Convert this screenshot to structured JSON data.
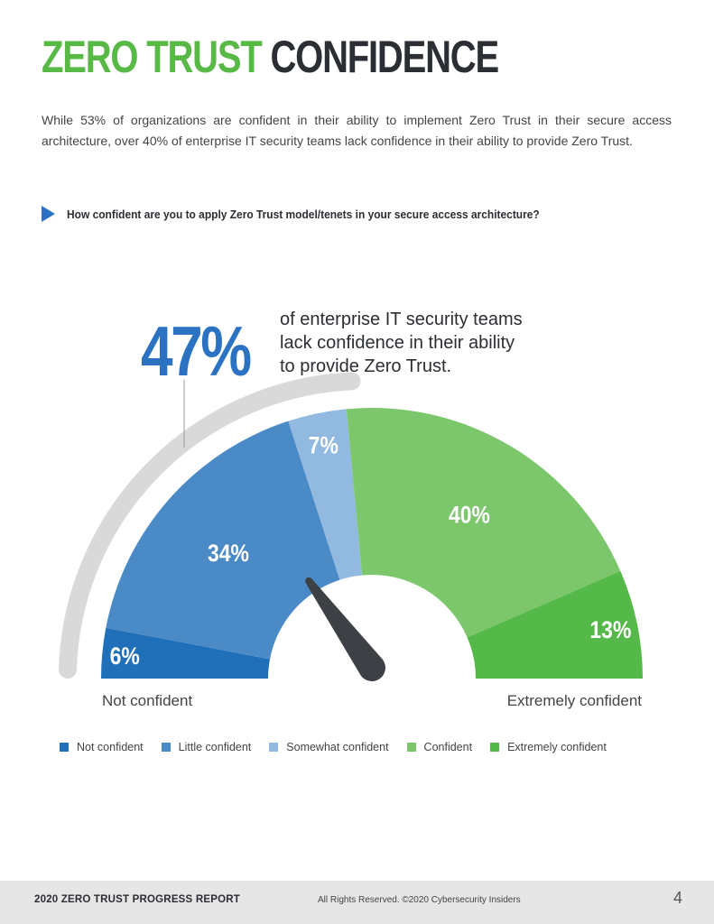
{
  "title": {
    "part1": "ZERO TRUST",
    "part2": "CONFIDENCE"
  },
  "intro": "While 53% of organizations are confident in their ability to implement Zero Trust in their secure access architecture, over 40% of enterprise IT security teams lack confidence in their ability to provide Zero Trust.",
  "question": "How confident are you to apply Zero Trust model/tenets in your secure access architecture?",
  "callout": {
    "percent": "47%",
    "line1": "of enterprise IT security teams",
    "line2": "lack confidence in their ability",
    "line3": "to provide Zero Trust."
  },
  "chart_data": {
    "type": "pie",
    "style": "half-donut gauge",
    "categories": [
      "Not confident",
      "Little confident",
      "Somewhat confident",
      "Confident",
      "Extremely confident"
    ],
    "values": [
      6,
      34,
      7,
      40,
      13
    ],
    "labels": [
      "6%",
      "34%",
      "7%",
      "40%",
      "13%"
    ],
    "colors": [
      "#1f6fb9",
      "#4a8ac6",
      "#92bae0",
      "#7cc76c",
      "#54b948"
    ],
    "left_label": "Not confident",
    "right_label": "Extremely confident"
  },
  "colors": {
    "green": "#58b947",
    "dark": "#2b2e33",
    "accent_blue": "#2b73c2",
    "needle": "#3d4045",
    "track": "#d9d9d9"
  },
  "footer": {
    "report": "2020 ZERO TRUST PROGRESS REPORT",
    "rights": "All Rights Reserved.  ©2020 Cybersecurity Insiders",
    "page": "4"
  }
}
